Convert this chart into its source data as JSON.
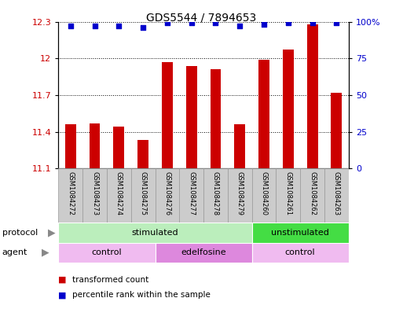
{
  "title": "GDS5544 / 7894653",
  "samples": [
    "GSM1084272",
    "GSM1084273",
    "GSM1084274",
    "GSM1084275",
    "GSM1084276",
    "GSM1084277",
    "GSM1084278",
    "GSM1084279",
    "GSM1084260",
    "GSM1084261",
    "GSM1084262",
    "GSM1084263"
  ],
  "bar_values": [
    11.46,
    11.47,
    11.44,
    11.33,
    11.97,
    11.94,
    11.91,
    11.46,
    11.99,
    12.07,
    12.28,
    11.72
  ],
  "percentile_values": [
    97,
    97,
    97,
    96,
    99,
    99,
    99,
    97,
    98,
    99,
    99,
    99
  ],
  "bar_color": "#cc0000",
  "dot_color": "#0000cc",
  "ylim_left": [
    11.1,
    12.3
  ],
  "ylim_right": [
    0,
    100
  ],
  "yticks_left": [
    11.1,
    11.4,
    11.7,
    12.0,
    12.3
  ],
  "ytick_labels_left": [
    "11.1",
    "11.4",
    "11.7",
    "12",
    "12.3"
  ],
  "yticks_right": [
    0,
    25,
    50,
    75,
    100
  ],
  "ytick_labels_right": [
    "0",
    "25",
    "50",
    "75",
    "100%"
  ],
  "protocol_groups": [
    {
      "label": "stimulated",
      "start": 0,
      "end": 8,
      "color": "#bbeebc"
    },
    {
      "label": "unstimulated",
      "start": 8,
      "end": 12,
      "color": "#44dd44"
    }
  ],
  "agent_groups": [
    {
      "label": "control",
      "start": 0,
      "end": 4,
      "color": "#f0bbf0"
    },
    {
      "label": "edelfosine",
      "start": 4,
      "end": 8,
      "color": "#dd88dd"
    },
    {
      "label": "control",
      "start": 8,
      "end": 12,
      "color": "#f0bbf0"
    }
  ],
  "legend_items": [
    {
      "label": "transformed count",
      "color": "#cc0000"
    },
    {
      "label": "percentile rank within the sample",
      "color": "#0000cc"
    }
  ],
  "protocol_label": "protocol",
  "agent_label": "agent",
  "bar_bottom": 11.1,
  "sample_box_color": "#cccccc",
  "sample_box_edge": "#999999",
  "plot_bg": "#ffffff"
}
